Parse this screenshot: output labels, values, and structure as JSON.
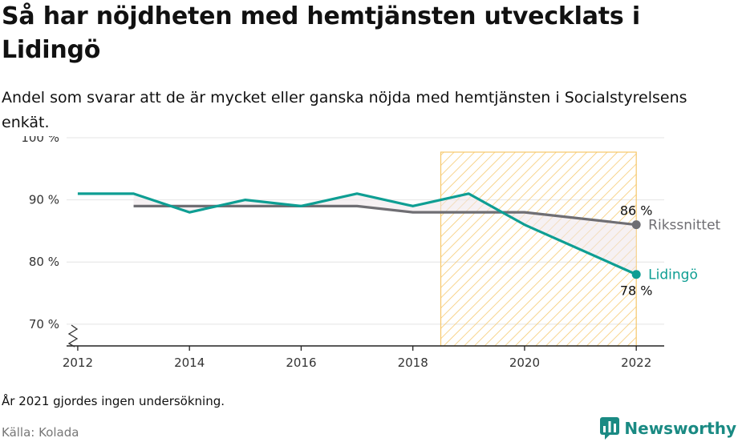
{
  "header": {
    "title": "Så har nöjdheten med hemtjänsten utvecklats i Lidingö",
    "subtitle": "Andel som svarar att de är mycket eller ganska nöjda med hemtjänsten i Socialstyrelsens enkät."
  },
  "footer": {
    "note": "År 2021 gjordes ingen undersökning.",
    "source": "Källa: Kolada",
    "brand": "Newsworthy"
  },
  "colors": {
    "lidingo": "#0e9e93",
    "riket": "#6f6e73",
    "hatch": "#f6c76a",
    "grid": "#e4e4e4"
  },
  "chart_data": {
    "type": "line",
    "title": "Så har nöjdheten med hemtjänsten utvecklats i Lidingö",
    "xlabel": "",
    "ylabel": "",
    "xlim": [
      2011.8,
      2022.5
    ],
    "ylim": [
      66.5,
      100
    ],
    "x_ticks": [
      2012,
      2014,
      2016,
      2018,
      2020,
      2022
    ],
    "y_ticks": [
      70,
      80,
      90,
      100
    ],
    "y_tick_labels": [
      "70 %",
      "80 %",
      "90 %",
      "100 %"
    ],
    "grid": true,
    "highlight_range": [
      2018.5,
      2022
    ],
    "series": [
      {
        "name": "Rikssnittet",
        "color": "#6f6e73",
        "x": [
          2013,
          2014,
          2015,
          2016,
          2017,
          2018,
          2019,
          2020,
          2022
        ],
        "values": [
          89,
          89,
          89,
          89,
          89,
          88,
          88,
          88,
          86
        ],
        "end_label": "86 %"
      },
      {
        "name": "Lidingö",
        "color": "#0e9e93",
        "x": [
          2012,
          2013,
          2014,
          2015,
          2016,
          2017,
          2018,
          2019,
          2020,
          2022
        ],
        "values": [
          91,
          91,
          88,
          90,
          89,
          91,
          89,
          91,
          86,
          78
        ],
        "end_label": "78 %"
      }
    ]
  }
}
